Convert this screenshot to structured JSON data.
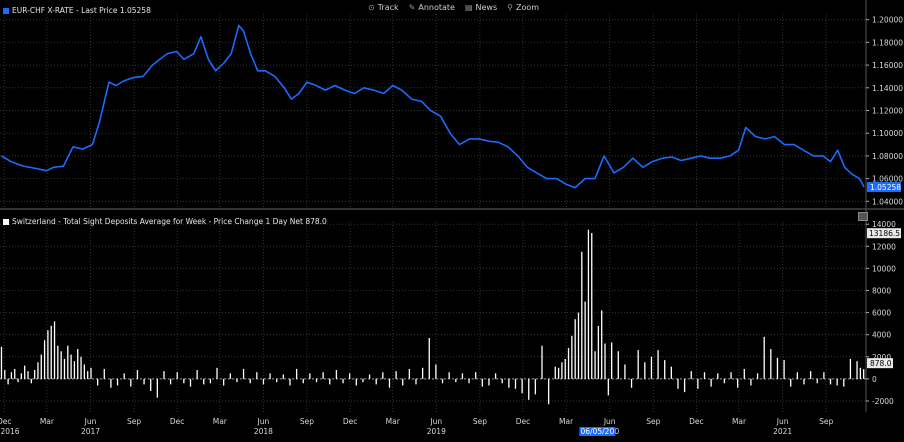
{
  "toolbar": {
    "track_label": "Track",
    "annotate_label": "Annotate",
    "news_label": "News",
    "zoom_label": "Zoom"
  },
  "chart_data": [
    {
      "type": "line",
      "legend": "EUR-CHF X-RATE - Last Price 1.05258",
      "series": [
        {
          "name": "EUR-CHF X-RATE",
          "color": "#1a6bff",
          "x": [
            "2016-11-25",
            "2016-12-15",
            "2017-01-10",
            "2017-02-05",
            "2017-02-28",
            "2017-03-15",
            "2017-04-05",
            "2017-04-25",
            "2017-05-15",
            "2017-06-05",
            "2017-06-20",
            "2017-07-10",
            "2017-07-25",
            "2017-08-10",
            "2017-08-30",
            "2017-09-20",
            "2017-10-10",
            "2017-10-25",
            "2017-11-10",
            "2017-11-30",
            "2017-12-15",
            "2018-01-05",
            "2018-01-20",
            "2018-02-05",
            "2018-02-20",
            "2018-03-10",
            "2018-03-25",
            "2018-04-10",
            "2018-04-20",
            "2018-05-05",
            "2018-05-20",
            "2018-06-05",
            "2018-06-25",
            "2018-07-15",
            "2018-07-30",
            "2018-08-15",
            "2018-09-01",
            "2018-09-20",
            "2018-10-10",
            "2018-10-30",
            "2018-11-20",
            "2018-12-10",
            "2018-12-30",
            "2019-01-20",
            "2019-02-10",
            "2019-03-01",
            "2019-03-20",
            "2019-04-10",
            "2019-05-01",
            "2019-05-20",
            "2019-06-10",
            "2019-06-30",
            "2019-07-20",
            "2019-08-10",
            "2019-08-30",
            "2019-09-20",
            "2019-10-10",
            "2019-10-30",
            "2019-11-20",
            "2019-12-10",
            "2019-12-30",
            "2020-01-20",
            "2020-02-10",
            "2020-03-01",
            "2020-03-20",
            "2020-04-10",
            "2020-05-01",
            "2020-05-20",
            "2020-06-10",
            "2020-06-30",
            "2020-07-20",
            "2020-08-10",
            "2020-08-30",
            "2020-09-20",
            "2020-10-10",
            "2020-10-30",
            "2020-11-20",
            "2020-12-10",
            "2020-12-30",
            "2021-01-20",
            "2021-02-10",
            "2021-02-28",
            "2021-03-15",
            "2021-04-05",
            "2021-04-25",
            "2021-05-15",
            "2021-06-05",
            "2021-06-25",
            "2021-07-15",
            "2021-08-05",
            "2021-08-25",
            "2021-09-10",
            "2021-09-25",
            "2021-10-10",
            "2021-10-25",
            "2021-11-10",
            "2021-11-20"
          ],
          "values": [
            1.08,
            1.075,
            1.071,
            1.069,
            1.067,
            1.07,
            1.071,
            1.088,
            1.086,
            1.09,
            1.11,
            1.145,
            1.142,
            1.146,
            1.149,
            1.15,
            1.16,
            1.165,
            1.17,
            1.172,
            1.165,
            1.17,
            1.185,
            1.165,
            1.155,
            1.162,
            1.17,
            1.195,
            1.19,
            1.17,
            1.155,
            1.155,
            1.15,
            1.14,
            1.13,
            1.135,
            1.145,
            1.142,
            1.138,
            1.142,
            1.138,
            1.135,
            1.14,
            1.138,
            1.135,
            1.142,
            1.138,
            1.13,
            1.128,
            1.12,
            1.115,
            1.1,
            1.09,
            1.095,
            1.095,
            1.093,
            1.092,
            1.088,
            1.08,
            1.07,
            1.065,
            1.06,
            1.06,
            1.055,
            1.052,
            1.06,
            1.06,
            1.08,
            1.065,
            1.07,
            1.078,
            1.07,
            1.075,
            1.078,
            1.079,
            1.076,
            1.078,
            1.08,
            1.078,
            1.078,
            1.08,
            1.085,
            1.105,
            1.097,
            1.095,
            1.097,
            1.09,
            1.09,
            1.085,
            1.08,
            1.08,
            1.075,
            1.085,
            1.07,
            1.064,
            1.06,
            1.0526
          ]
        }
      ],
      "ylim": [
        1.035,
        1.205
      ],
      "yticks": [
        "1.20000",
        "1.18000",
        "1.16000",
        "1.14000",
        "1.12000",
        "1.10000",
        "1.08000",
        "1.06000",
        "1.04000"
      ],
      "last_value_label": "1.05258",
      "grid": true
    },
    {
      "type": "bar",
      "legend": "Switzerland - Total Sight Deposits Average for Week - Price Change 1 Day Net 878.0",
      "series": [
        {
          "name": "Switzerland - Total Sight Deposits Average for Week",
          "color": "#ffffff",
          "x": [
            "2016-11-25",
            "2016-12-02",
            "2016-12-09",
            "2016-12-16",
            "2016-12-23",
            "2016-12-30",
            "2017-01-06",
            "2017-01-13",
            "2017-01-20",
            "2017-01-27",
            "2017-02-03",
            "2017-02-10",
            "2017-02-17",
            "2017-02-24",
            "2017-03-03",
            "2017-03-10",
            "2017-03-17",
            "2017-03-24",
            "2017-03-31",
            "2017-04-07",
            "2017-04-14",
            "2017-04-21",
            "2017-04-28",
            "2017-05-05",
            "2017-05-12",
            "2017-05-19",
            "2017-05-26",
            "2017-06-02",
            "2017-06-16",
            "2017-06-30",
            "2017-07-14",
            "2017-07-28",
            "2017-08-11",
            "2017-08-25",
            "2017-09-08",
            "2017-09-22",
            "2017-10-06",
            "2017-10-20",
            "2017-11-03",
            "2017-11-17",
            "2017-12-01",
            "2017-12-15",
            "2017-12-29",
            "2018-01-12",
            "2018-01-26",
            "2018-02-09",
            "2018-02-23",
            "2018-03-09",
            "2018-03-23",
            "2018-04-06",
            "2018-04-20",
            "2018-05-04",
            "2018-05-18",
            "2018-06-01",
            "2018-06-15",
            "2018-06-29",
            "2018-07-13",
            "2018-07-27",
            "2018-08-10",
            "2018-08-24",
            "2018-09-07",
            "2018-09-21",
            "2018-10-05",
            "2018-10-19",
            "2018-11-02",
            "2018-11-16",
            "2018-11-30",
            "2018-12-14",
            "2018-12-28",
            "2019-01-11",
            "2019-01-25",
            "2019-02-08",
            "2019-02-22",
            "2019-03-08",
            "2019-03-22",
            "2019-04-05",
            "2019-04-19",
            "2019-05-03",
            "2019-05-17",
            "2019-05-31",
            "2019-06-14",
            "2019-06-28",
            "2019-07-12",
            "2019-07-26",
            "2019-08-09",
            "2019-08-23",
            "2019-09-06",
            "2019-09-20",
            "2019-10-04",
            "2019-10-18",
            "2019-11-01",
            "2019-11-15",
            "2019-11-29",
            "2019-12-13",
            "2019-12-27",
            "2020-01-10",
            "2020-01-24",
            "2020-02-07",
            "2020-02-14",
            "2020-02-21",
            "2020-02-28",
            "2020-03-06",
            "2020-03-13",
            "2020-03-20",
            "2020-03-27",
            "2020-04-03",
            "2020-04-10",
            "2020-04-17",
            "2020-04-24",
            "2020-05-01",
            "2020-05-08",
            "2020-05-15",
            "2020-05-22",
            "2020-05-29",
            "2020-06-05",
            "2020-06-19",
            "2020-07-03",
            "2020-07-17",
            "2020-07-31",
            "2020-08-14",
            "2020-08-28",
            "2020-09-11",
            "2020-09-25",
            "2020-10-09",
            "2020-10-23",
            "2020-11-06",
            "2020-11-20",
            "2020-12-04",
            "2020-12-18",
            "2021-01-01",
            "2021-01-15",
            "2021-01-29",
            "2021-02-12",
            "2021-02-26",
            "2021-03-12",
            "2021-03-26",
            "2021-04-09",
            "2021-04-23",
            "2021-05-07",
            "2021-05-21",
            "2021-06-04",
            "2021-06-18",
            "2021-07-02",
            "2021-07-16",
            "2021-07-30",
            "2021-08-13",
            "2021-08-27",
            "2021-09-10",
            "2021-09-24",
            "2021-10-08",
            "2021-10-22",
            "2021-11-05",
            "2021-11-12",
            "2021-11-19"
          ],
          "values": [
            2900,
            800,
            -500,
            600,
            900,
            -300,
            500,
            1200,
            700,
            -400,
            800,
            1500,
            2200,
            3500,
            4400,
            4800,
            5200,
            3000,
            2500,
            1800,
            3000,
            2200,
            1600,
            2700,
            2000,
            1300,
            700,
            1000,
            -600,
            900,
            -800,
            -600,
            500,
            -700,
            800,
            -500,
            -1100,
            -1700,
            700,
            -500,
            600,
            -400,
            -700,
            800,
            -500,
            -400,
            1000,
            -600,
            500,
            -300,
            900,
            -400,
            600,
            -500,
            500,
            -300,
            400,
            -600,
            900,
            -400,
            500,
            -300,
            600,
            -500,
            800,
            -400,
            500,
            -600,
            -300,
            400,
            -500,
            600,
            -800,
            700,
            -600,
            900,
            -500,
            1000,
            3700,
            1300,
            -400,
            600,
            -300,
            500,
            -400,
            600,
            -700,
            -600,
            500,
            -400,
            -800,
            -900,
            -1300,
            -1900,
            -1400,
            3000,
            -2300,
            1100,
            1000,
            1500,
            1800,
            2800,
            3900,
            5400,
            6000,
            11500,
            7000,
            13500,
            13200,
            2500,
            4800,
            6200,
            3200,
            -1500,
            3300,
            2500,
            1300,
            -800,
            2600,
            1500,
            2000,
            2600,
            1700,
            1100,
            -900,
            -1200,
            700,
            -900,
            600,
            -700,
            500,
            -400,
            600,
            -800,
            900,
            -600,
            500,
            3800,
            2700,
            1900,
            1700,
            -700,
            600,
            -500,
            700,
            -400,
            600,
            -500,
            -600,
            -700,
            1800,
            1600,
            1000,
            878
          ]
        }
      ],
      "ylim": [
        -3000,
        14200
      ],
      "yticks": [
        "14000",
        "12000",
        "10000",
        "8000",
        "6000",
        "4000",
        "2000",
        "0",
        "-2000"
      ],
      "max_value_label": "13186.5",
      "last_value_label": "878.0",
      "grid": true
    }
  ],
  "x_axis": {
    "months": [
      {
        "label": "Dec",
        "date": "2016-12-01"
      },
      {
        "label": "Mar",
        "date": "2017-03-01"
      },
      {
        "label": "Jun",
        "date": "2017-06-01"
      },
      {
        "label": "Sep",
        "date": "2017-09-01"
      },
      {
        "label": "Dec",
        "date": "2017-12-01"
      },
      {
        "label": "Mar",
        "date": "2018-03-01"
      },
      {
        "label": "Jun",
        "date": "2018-06-01"
      },
      {
        "label": "Sep",
        "date": "2018-09-01"
      },
      {
        "label": "Dec",
        "date": "2018-12-01"
      },
      {
        "label": "Mar",
        "date": "2019-03-01"
      },
      {
        "label": "Jun",
        "date": "2019-06-01"
      },
      {
        "label": "Sep",
        "date": "2019-09-01"
      },
      {
        "label": "Dec",
        "date": "2019-12-01"
      },
      {
        "label": "Mar",
        "date": "2020-03-01"
      },
      {
        "label": "Jun",
        "date": "2020-06-01"
      },
      {
        "label": "Sep",
        "date": "2020-09-01"
      },
      {
        "label": "Dec",
        "date": "2020-12-01"
      },
      {
        "label": "Mar",
        "date": "2021-03-01"
      },
      {
        "label": "Jun",
        "date": "2021-06-01"
      },
      {
        "label": "Sep",
        "date": "2021-09-01"
      }
    ],
    "years": [
      {
        "label": "2016",
        "date": "2016-12-01"
      },
      {
        "label": "2017",
        "date": "2017-06-01"
      },
      {
        "label": "2018",
        "date": "2018-06-01"
      },
      {
        "label": "2019",
        "date": "2019-06-01"
      },
      {
        "label": "2020",
        "date": "2020-06-01"
      },
      {
        "label": "2021",
        "date": "2021-06-01"
      }
    ],
    "crosshair_date": "06/05/20",
    "crosshair_at": "2020-05-06"
  },
  "colors": {
    "background": "#000000",
    "grid": "#333333",
    "line": "#1a6bff",
    "bars": "#ffffff",
    "axis_text": "#d8d8d8"
  }
}
